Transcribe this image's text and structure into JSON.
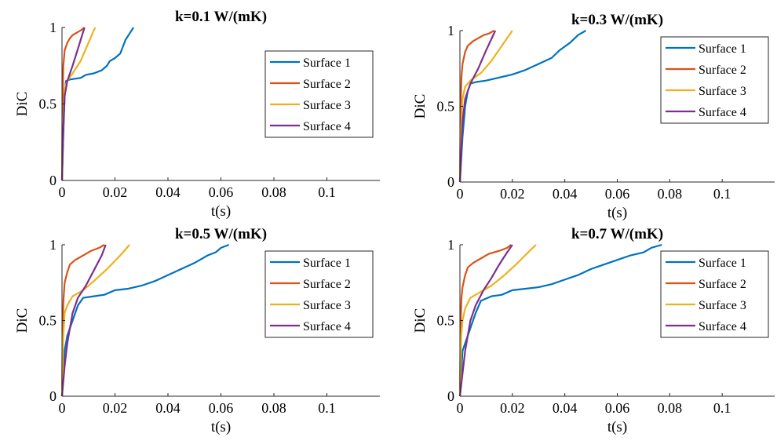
{
  "chart_data": [
    {
      "type": "line",
      "title": "k=0.1 W/(mK)",
      "xlabel": "t(s)",
      "ylabel": "DiC",
      "xlim": [
        0,
        0.12
      ],
      "ylim": [
        0,
        1
      ],
      "xticks": [
        "0",
        "0.02",
        "0.04",
        "0.06",
        "0.08",
        "0.1"
      ],
      "yticks": [
        "0",
        "0.5",
        "1"
      ],
      "legend": "right-center",
      "series": [
        {
          "name": "Surface 1",
          "color": "#0072BD",
          "x": [
            0,
            0.0005,
            0.001,
            0.0015,
            0.003,
            0.005,
            0.007,
            0.009,
            0.012,
            0.015,
            0.017,
            0.018,
            0.02,
            0.022,
            0.024,
            0.0255,
            0.027
          ],
          "y": [
            0,
            0.3,
            0.55,
            0.65,
            0.66,
            0.665,
            0.67,
            0.69,
            0.7,
            0.72,
            0.75,
            0.78,
            0.8,
            0.83,
            0.92,
            0.96,
            1.0
          ]
        },
        {
          "name": "Surface 2",
          "color": "#D95319",
          "x": [
            0,
            0.0002,
            0.0005,
            0.001,
            0.002,
            0.003,
            0.004,
            0.006,
            0.007,
            0.0085
          ],
          "y": [
            0,
            0.5,
            0.75,
            0.85,
            0.9,
            0.93,
            0.95,
            0.97,
            0.98,
            1.0
          ]
        },
        {
          "name": "Surface 3",
          "color": "#EDB120",
          "x": [
            0,
            0.0005,
            0.001,
            0.002,
            0.004,
            0.007,
            0.009,
            0.011,
            0.0125
          ],
          "y": [
            0,
            0.4,
            0.6,
            0.65,
            0.7,
            0.78,
            0.86,
            0.94,
            1.0
          ]
        },
        {
          "name": "Surface 4",
          "color": "#7E2F8E",
          "x": [
            0,
            0.0005,
            0.001,
            0.002,
            0.004,
            0.006,
            0.0085
          ],
          "y": [
            0,
            0.35,
            0.55,
            0.65,
            0.75,
            0.86,
            1.0
          ]
        }
      ]
    },
    {
      "type": "line",
      "title": "k=0.3 W/(mK)",
      "xlabel": "t(s)",
      "ylabel": "DiC",
      "xlim": [
        0,
        0.12
      ],
      "ylim": [
        0,
        1
      ],
      "xticks": [
        "0",
        "0.02",
        "0.04",
        "0.06",
        "0.08",
        "0.1"
      ],
      "yticks": [
        "0",
        "0.5",
        "1"
      ],
      "legend": "top-right",
      "series": [
        {
          "name": "Surface 1",
          "color": "#0072BD",
          "x": [
            0,
            0.001,
            0.002,
            0.003,
            0.004,
            0.006,
            0.01,
            0.015,
            0.02,
            0.025,
            0.03,
            0.035,
            0.038,
            0.042,
            0.045,
            0.048
          ],
          "y": [
            0,
            0.3,
            0.5,
            0.6,
            0.65,
            0.66,
            0.67,
            0.69,
            0.71,
            0.74,
            0.78,
            0.82,
            0.87,
            0.92,
            0.97,
            1.0
          ]
        },
        {
          "name": "Surface 2",
          "color": "#D95319",
          "x": [
            0,
            0.0003,
            0.0006,
            0.001,
            0.002,
            0.003,
            0.005,
            0.007,
            0.009,
            0.011,
            0.013
          ],
          "y": [
            0,
            0.5,
            0.7,
            0.78,
            0.86,
            0.9,
            0.93,
            0.95,
            0.97,
            0.98,
            1.0
          ]
        },
        {
          "name": "Surface 3",
          "color": "#EDB120",
          "x": [
            0,
            0.0005,
            0.001,
            0.002,
            0.004,
            0.008,
            0.012,
            0.016,
            0.02
          ],
          "y": [
            0,
            0.35,
            0.55,
            0.63,
            0.67,
            0.72,
            0.8,
            0.9,
            1.0
          ]
        },
        {
          "name": "Surface 4",
          "color": "#7E2F8E",
          "x": [
            0,
            0.0005,
            0.001,
            0.002,
            0.004,
            0.007,
            0.01,
            0.0135
          ],
          "y": [
            0,
            0.2,
            0.4,
            0.55,
            0.65,
            0.75,
            0.87,
            1.0
          ]
        }
      ]
    },
    {
      "type": "line",
      "title": "k=0.5 W/(mK)",
      "xlabel": "t(s)",
      "ylabel": "DiC",
      "xlim": [
        0,
        0.12
      ],
      "ylim": [
        0,
        1
      ],
      "xticks": [
        "0",
        "0.02",
        "0.04",
        "0.06",
        "0.08",
        "0.1"
      ],
      "yticks": [
        "0",
        "0.5",
        "1"
      ],
      "legend": "top-right",
      "series": [
        {
          "name": "Surface 1",
          "color": "#0072BD",
          "x": [
            0,
            0.001,
            0.002,
            0.004,
            0.006,
            0.008,
            0.012,
            0.016,
            0.02,
            0.025,
            0.03,
            0.035,
            0.04,
            0.045,
            0.05,
            0.055,
            0.058,
            0.06,
            0.063
          ],
          "y": [
            0,
            0.3,
            0.4,
            0.5,
            0.6,
            0.65,
            0.66,
            0.67,
            0.7,
            0.71,
            0.73,
            0.76,
            0.8,
            0.84,
            0.88,
            0.93,
            0.95,
            0.98,
            1.0
          ]
        },
        {
          "name": "Surface 2",
          "color": "#D95319",
          "x": [
            0,
            0.0003,
            0.0006,
            0.001,
            0.002,
            0.003,
            0.005,
            0.008,
            0.011,
            0.014,
            0.016
          ],
          "y": [
            0,
            0.5,
            0.65,
            0.75,
            0.82,
            0.87,
            0.9,
            0.93,
            0.96,
            0.98,
            1.0
          ]
        },
        {
          "name": "Surface 3",
          "color": "#EDB120",
          "x": [
            0,
            0.0005,
            0.001,
            0.002,
            0.004,
            0.008,
            0.012,
            0.017,
            0.022,
            0.0255
          ],
          "y": [
            0,
            0.4,
            0.55,
            0.6,
            0.66,
            0.7,
            0.76,
            0.84,
            0.93,
            1.0
          ]
        },
        {
          "name": "Surface 4",
          "color": "#7E2F8E",
          "x": [
            0,
            0.001,
            0.002,
            0.004,
            0.006,
            0.009,
            0.012,
            0.015,
            0.0165
          ],
          "y": [
            0,
            0.2,
            0.35,
            0.55,
            0.65,
            0.73,
            0.83,
            0.93,
            1.0
          ]
        }
      ]
    },
    {
      "type": "line",
      "title": "k=0.7 W/(mK)",
      "xlabel": "t(s)",
      "ylabel": "DiC",
      "xlim": [
        0,
        0.12
      ],
      "ylim": [
        0,
        1
      ],
      "xticks": [
        "0",
        "0.02",
        "0.04",
        "0.06",
        "0.08",
        "0.1"
      ],
      "yticks": [
        "0",
        "0.5",
        "1"
      ],
      "legend": "top-right",
      "series": [
        {
          "name": "Surface 1",
          "color": "#0072BD",
          "x": [
            0,
            0.001,
            0.002,
            0.004,
            0.006,
            0.008,
            0.012,
            0.016,
            0.02,
            0.025,
            0.03,
            0.035,
            0.04,
            0.045,
            0.05,
            0.055,
            0.06,
            0.065,
            0.07,
            0.073,
            0.077
          ],
          "y": [
            0,
            0.3,
            0.35,
            0.45,
            0.55,
            0.63,
            0.66,
            0.67,
            0.7,
            0.71,
            0.72,
            0.74,
            0.77,
            0.8,
            0.84,
            0.87,
            0.9,
            0.93,
            0.95,
            0.98,
            1.0
          ]
        },
        {
          "name": "Surface 2",
          "color": "#D95319",
          "x": [
            0,
            0.0003,
            0.0006,
            0.001,
            0.002,
            0.003,
            0.005,
            0.008,
            0.011,
            0.015,
            0.018,
            0.0195
          ],
          "y": [
            0,
            0.5,
            0.65,
            0.72,
            0.8,
            0.85,
            0.88,
            0.91,
            0.94,
            0.96,
            0.98,
            1.0
          ]
        },
        {
          "name": "Surface 3",
          "color": "#EDB120",
          "x": [
            0,
            0.0005,
            0.001,
            0.002,
            0.004,
            0.008,
            0.012,
            0.017,
            0.022,
            0.026,
            0.029
          ],
          "y": [
            0,
            0.4,
            0.5,
            0.58,
            0.65,
            0.69,
            0.73,
            0.8,
            0.88,
            0.95,
            1.0
          ]
        },
        {
          "name": "Surface 4",
          "color": "#7E2F8E",
          "x": [
            0,
            0.001,
            0.002,
            0.004,
            0.006,
            0.009,
            0.012,
            0.015,
            0.018,
            0.02
          ],
          "y": [
            0,
            0.15,
            0.3,
            0.5,
            0.6,
            0.7,
            0.78,
            0.87,
            0.95,
            1.0
          ]
        }
      ]
    }
  ]
}
